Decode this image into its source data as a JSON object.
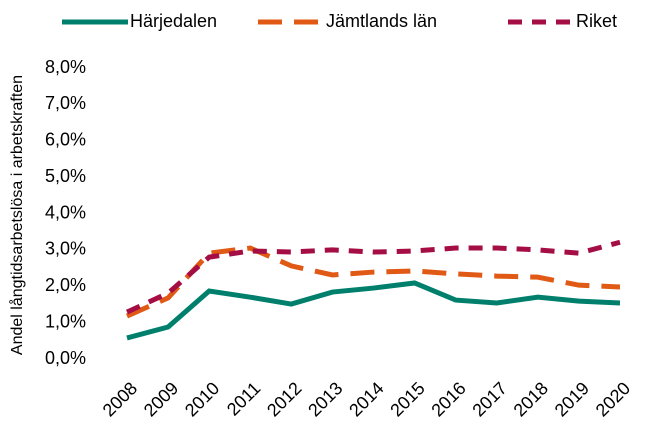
{
  "chart_data": {
    "type": "line",
    "y_label": "Andel långtidsarbetslösa i arbetskraften",
    "categories": [
      "2008",
      "2009",
      "2010",
      "2011",
      "2012",
      "2013",
      "2014",
      "2015",
      "2016",
      "2017",
      "2018",
      "2019",
      "2020"
    ],
    "series": [
      {
        "name": "Härjedalen",
        "color": "#00806c",
        "dash": "solid",
        "values": [
          0.58,
          0.88,
          1.87,
          1.7,
          1.51,
          1.84,
          1.95,
          2.09,
          1.62,
          1.54,
          1.7,
          1.59,
          1.54
        ]
      },
      {
        "name": "Jämtlands län",
        "color": "#e05a16",
        "dash": "long",
        "values": [
          1.18,
          1.68,
          2.91,
          3.05,
          2.56,
          2.31,
          2.39,
          2.42,
          2.34,
          2.28,
          2.25,
          2.03,
          1.98
        ]
      },
      {
        "name": "Riket",
        "color": "#a50d45",
        "dash": "short",
        "values": [
          1.29,
          1.81,
          2.8,
          2.97,
          2.94,
          3.0,
          2.94,
          2.97,
          3.05,
          3.05,
          3.0,
          2.91,
          3.21
        ]
      }
    ],
    "ylim": [
      0,
      8
    ],
    "yticks": [
      {
        "value": 0,
        "label": "0,0%"
      },
      {
        "value": 1,
        "label": "1,0%"
      },
      {
        "value": 2,
        "label": "2,0%"
      },
      {
        "value": 3,
        "label": "3,0%"
      },
      {
        "value": 4,
        "label": "4,0%"
      },
      {
        "value": 5,
        "label": "5,0%"
      },
      {
        "value": 6,
        "label": "6,0%"
      },
      {
        "value": 7,
        "label": "7,0%"
      },
      {
        "value": 8,
        "label": "8,0%"
      }
    ],
    "legend": "top"
  }
}
